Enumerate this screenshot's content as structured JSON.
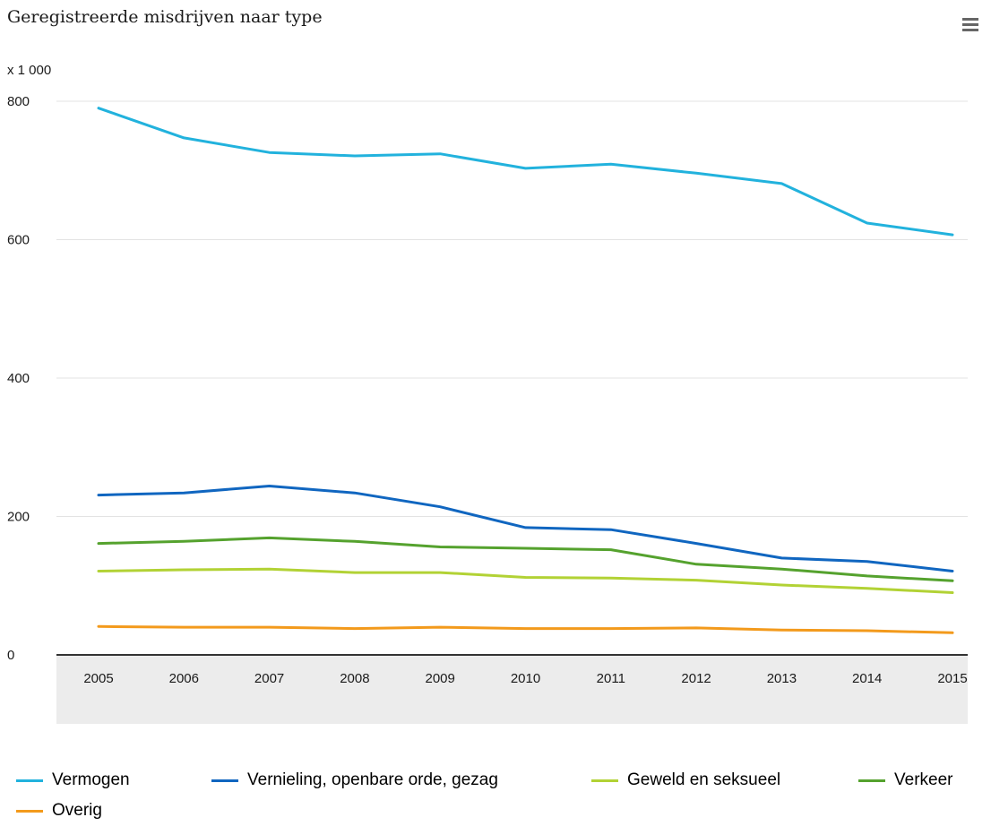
{
  "title": "Geregistreerde misdrijven naar type",
  "menu_icon": "hamburger-menu-icon",
  "chart_data": {
    "type": "line",
    "title": "Geregistreerde misdrijven naar type",
    "unit_label": "x 1 000",
    "xlabel": "",
    "ylabel": "",
    "x": [
      "2005",
      "2006",
      "2007",
      "2008",
      "2009",
      "2010",
      "2011",
      "2012",
      "2013",
      "2014",
      "2015"
    ],
    "yticks": [
      "0",
      "200",
      "400",
      "600",
      "800"
    ],
    "ylim": [
      0,
      800
    ],
    "grid": true,
    "legend_position": "bottom",
    "series": [
      {
        "name": "Vermogen",
        "color": "#22b2dd",
        "values": [
          790,
          747,
          726,
          721,
          724,
          703,
          709,
          696,
          681,
          624,
          607
        ]
      },
      {
        "name": "Vernieling, openbare orde, gezag",
        "color": "#1066c0",
        "values": [
          231,
          234,
          244,
          234,
          214,
          184,
          181,
          161,
          140,
          135,
          121
        ]
      },
      {
        "name": "Geweld en seksueel",
        "color": "#b2d235",
        "values": [
          121,
          123,
          124,
          119,
          119,
          112,
          111,
          108,
          101,
          96,
          90
        ]
      },
      {
        "name": "Verkeer",
        "color": "#55a22e",
        "values": [
          161,
          164,
          169,
          164,
          156,
          154,
          152,
          131,
          124,
          114,
          107
        ]
      },
      {
        "name": "Overig",
        "color": "#f39a1c",
        "values": [
          41,
          40,
          40,
          38,
          40,
          38,
          38,
          39,
          36,
          35,
          32
        ]
      }
    ]
  }
}
